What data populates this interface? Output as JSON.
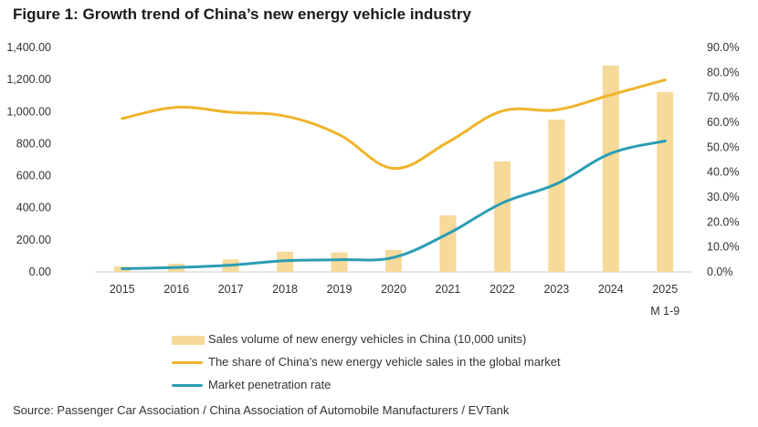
{
  "title": "Figure 1: Growth trend of China’s new energy vehicle industry",
  "source": "Source: Passenger Car Association / China Association of Automobile Manufacturers / EVTank",
  "colors": {
    "bar": "#f7d99a",
    "share_line": "#f0b429",
    "penetration_line": "#2a9db5",
    "axis": "#cccccc",
    "text": "#333333"
  },
  "chart_data": {
    "type": "bar",
    "categories": [
      "2015",
      "2016",
      "2017",
      "2018",
      "2019",
      "2020",
      "2021",
      "2022",
      "2023",
      "2024",
      "2025"
    ],
    "category_sublabels": [
      "",
      "",
      "",
      "",
      "",
      "",
      "",
      "",
      "",
      "",
      "M 1-9"
    ],
    "left_axis": {
      "ylim": [
        0,
        1400
      ],
      "ticks": [
        "0.00",
        "200.00",
        "400.00",
        "600.00",
        "800.00",
        "1,000.00",
        "1,200.00",
        "1,400.00"
      ]
    },
    "right_axis": {
      "ylim": [
        0,
        90
      ],
      "ticks": [
        "0.0%",
        "10.0%",
        "20.0%",
        "30.0%",
        "40.0%",
        "50.0%",
        "60.0%",
        "70.0%",
        "80.0%",
        "90.0%"
      ]
    },
    "series": [
      {
        "name": "Sales volume of new energy vehicles in China (10,000 units)",
        "type": "bar",
        "axis": "left",
        "values": [
          33,
          51,
          78,
          126,
          121,
          137,
          352,
          689,
          950,
          1287,
          1122
        ]
      },
      {
        "name": "The share of China’s new energy vehicle sales in the global market",
        "type": "line",
        "axis": "right",
        "values": [
          61.5,
          66,
          64,
          62.5,
          55,
          41.5,
          52,
          64.5,
          65,
          71,
          77
        ]
      },
      {
        "name": "Market penetration rate",
        "type": "line",
        "axis": "right",
        "values": [
          1.3,
          1.8,
          2.7,
          4.5,
          4.9,
          5.8,
          15.3,
          27.6,
          35.3,
          47.5,
          52.5
        ]
      }
    ],
    "grid": false,
    "legend_position": "bottom"
  }
}
